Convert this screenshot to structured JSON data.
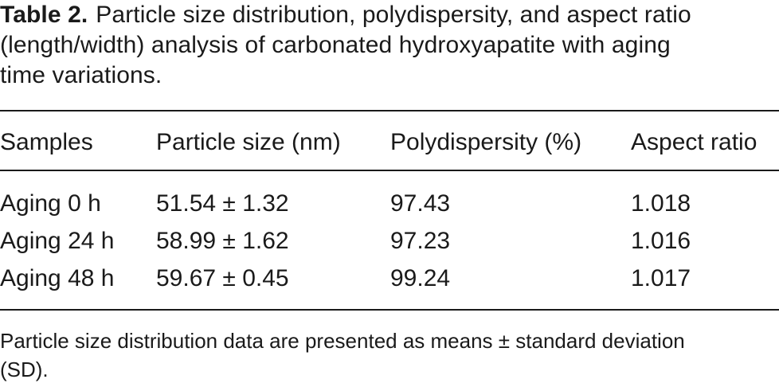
{
  "caption": {
    "label": "Table 2.",
    "text_lines": [
      "Particle size distribution, polydispersity, and aspect ratio",
      "(length/width) analysis of carbonated hydroxyapatite with aging",
      "time variations."
    ]
  },
  "table": {
    "headers": [
      "Samples",
      "Particle size (nm)",
      "Polydispersity (%)",
      "Aspect ratio"
    ],
    "rows": [
      [
        "Aging 0 h",
        "51.54 ± 1.32",
        "97.43",
        "1.018"
      ],
      [
        "Aging 24 h",
        "58.99 ± 1.62",
        "97.23",
        "1.016"
      ],
      [
        "Aging 48 h",
        "59.67 ± 0.45",
        "99.24",
        "1.017"
      ]
    ]
  },
  "footnote": {
    "lines": [
      "Particle size distribution data are presented as means ± standard deviation",
      "(SD)."
    ]
  }
}
